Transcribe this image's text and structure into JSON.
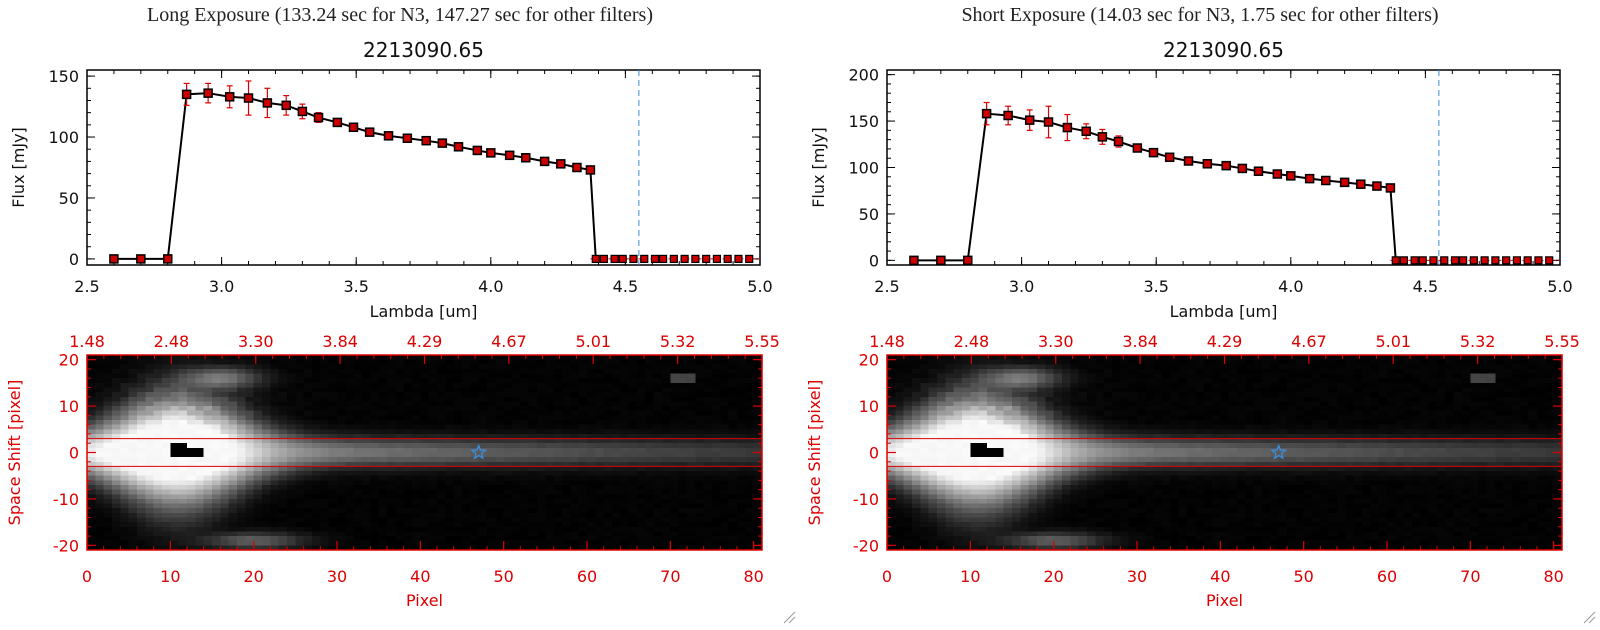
{
  "panels": [
    {
      "title": "Long Exposure (133.24 sec for N3, 147.27 sec for other filters)",
      "chart_data": {
        "type": "line",
        "title": "2213090.65",
        "xlabel": "Lambda [um]",
        "ylabel": "Flux [mJy]",
        "xlim": [
          2.5,
          5.0
        ],
        "ylim": [
          -5,
          155
        ],
        "xticks": [
          "2.5",
          "3.0",
          "3.5",
          "4.0",
          "4.5",
          "5.0"
        ],
        "yticks": [
          0,
          50,
          100,
          150
        ],
        "vline_x": 4.55,
        "x": [
          2.6,
          2.7,
          2.8,
          2.87,
          2.95,
          3.03,
          3.1,
          3.17,
          3.24,
          3.3,
          3.36,
          3.43,
          3.49,
          3.55,
          3.62,
          3.69,
          3.76,
          3.82,
          3.88,
          3.95,
          4.0,
          4.07,
          4.13,
          4.2,
          4.26,
          4.32,
          4.37
        ],
        "y": [
          0,
          0,
          0,
          135,
          136,
          133,
          132,
          128,
          126,
          121,
          116,
          112,
          108,
          104,
          101,
          99,
          97,
          95,
          92,
          89,
          87,
          85,
          83,
          80,
          78,
          75,
          73
        ],
        "err": [
          0,
          0,
          0,
          9,
          8,
          9,
          14,
          12,
          8,
          6,
          4,
          0,
          0,
          0,
          0,
          0,
          0,
          0,
          0,
          0,
          0,
          0,
          0,
          0,
          0,
          0,
          0
        ],
        "zero_x": [
          4.39,
          4.42,
          4.46,
          4.49,
          4.53,
          4.57,
          4.61,
          4.64,
          4.68,
          4.72,
          4.76,
          4.8,
          4.84,
          4.88,
          4.92,
          4.96
        ],
        "line_color": "#000000",
        "error_color": "#dd0000",
        "marker_color": "#cc0000",
        "vline_color": "#3b8fe0"
      },
      "image": {
        "xlabel": "Pixel",
        "ylabel": "Space Shift [pixel]",
        "xlim": [
          0,
          81
        ],
        "ylim": [
          -21,
          21
        ],
        "xticks": [
          0,
          10,
          20,
          30,
          40,
          50,
          60,
          70,
          80
        ],
        "yticks": [
          20,
          10,
          0,
          -10,
          -20
        ],
        "top_ticks": [
          "1.48",
          "2.48",
          "3.30",
          "3.84",
          "4.29",
          "4.67",
          "5.01",
          "5.32",
          "5.55"
        ],
        "aperture_y": [
          3,
          -3
        ],
        "star_pixel": 47,
        "axis_color": "#dd0000",
        "star_color": "#3b8fe0"
      }
    },
    {
      "title": "Short Exposure (14.03 sec for N3, 1.75 sec for other filters)",
      "chart_data": {
        "type": "line",
        "title": "2213090.65",
        "xlabel": "Lambda [um]",
        "ylabel": "Flux [mJy]",
        "xlim": [
          2.5,
          5.0
        ],
        "ylim": [
          -5,
          205
        ],
        "xticks": [
          "2.5",
          "3.0",
          "3.5",
          "4.0",
          "4.5",
          "5.0"
        ],
        "yticks": [
          0,
          50,
          100,
          150,
          200
        ],
        "vline_x": 4.55,
        "x": [
          2.6,
          2.7,
          2.8,
          2.87,
          2.95,
          3.03,
          3.1,
          3.17,
          3.24,
          3.3,
          3.36,
          3.43,
          3.49,
          3.55,
          3.62,
          3.69,
          3.76,
          3.82,
          3.88,
          3.95,
          4.0,
          4.07,
          4.13,
          4.2,
          4.26,
          4.32,
          4.37
        ],
        "y": [
          0,
          0,
          0,
          158,
          156,
          151,
          149,
          143,
          139,
          133,
          128,
          121,
          116,
          111,
          107,
          104,
          102,
          99,
          96,
          93,
          91,
          88,
          86,
          84,
          82,
          80,
          78
        ],
        "err": [
          0,
          0,
          0,
          12,
          10,
          11,
          17,
          14,
          8,
          8,
          6,
          0,
          0,
          0,
          0,
          0,
          0,
          0,
          0,
          0,
          0,
          0,
          0,
          0,
          0,
          0,
          0
        ],
        "zero_x": [
          4.39,
          4.42,
          4.46,
          4.49,
          4.53,
          4.57,
          4.61,
          4.64,
          4.68,
          4.72,
          4.76,
          4.8,
          4.84,
          4.88,
          4.92,
          4.96
        ],
        "line_color": "#000000",
        "error_color": "#dd0000",
        "marker_color": "#cc0000",
        "vline_color": "#3b8fe0"
      },
      "image": {
        "xlabel": "Pixel",
        "ylabel": "Space Shift [pixel]",
        "xlim": [
          0,
          81
        ],
        "ylim": [
          -21,
          21
        ],
        "xticks": [
          0,
          10,
          20,
          30,
          40,
          50,
          60,
          70,
          80
        ],
        "yticks": [
          20,
          10,
          0,
          -10,
          -20
        ],
        "top_ticks": [
          "1.48",
          "2.48",
          "3.30",
          "3.84",
          "4.29",
          "4.67",
          "5.01",
          "5.32",
          "5.55"
        ],
        "aperture_y": [
          3,
          -3
        ],
        "star_pixel": 47,
        "axis_color": "#dd0000",
        "star_color": "#3b8fe0"
      }
    }
  ],
  "icons": {
    "resize_grip": "resize-grip-icon"
  }
}
